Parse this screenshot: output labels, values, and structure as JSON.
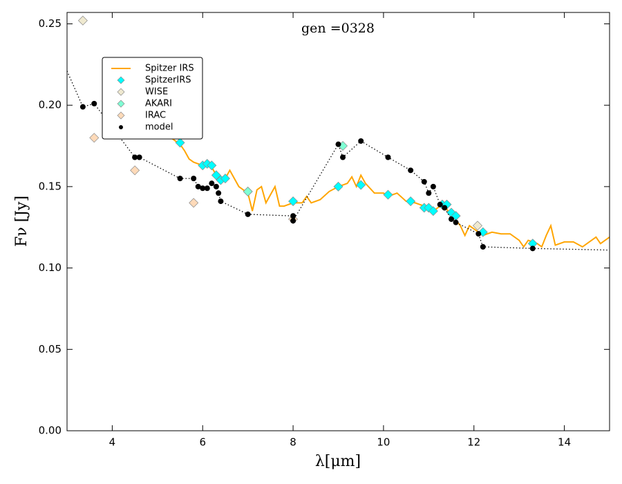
{
  "chart_data": {
    "type": "line_scatter",
    "title": "gen =0328",
    "xlabel": "λ[μm]",
    "ylabel": "Fν [Jy]",
    "xlim": [
      3,
      15
    ],
    "ylim": [
      0,
      0.257
    ],
    "xticks": [
      4,
      6,
      8,
      10,
      12,
      14
    ],
    "yticks": [
      {
        "value": 0,
        "label": "0.00"
      },
      0.05,
      {
        "value": 0.1,
        "label": "0.10"
      },
      0.15,
      {
        "value": 0.2,
        "label": "0.20"
      },
      0.25
    ],
    "legend": "upper left",
    "series": [
      {
        "name": "Spitzer IRS",
        "marker": "line",
        "color": "#ffa500",
        "x": [
          5.3,
          5.5,
          5.6,
          5.7,
          5.8,
          6.0,
          6.2,
          6.3,
          6.5,
          6.6,
          6.8,
          7.0,
          7.1,
          7.2,
          7.3,
          7.4,
          7.6,
          7.7,
          7.8,
          8.0,
          8.2,
          8.3,
          8.4,
          8.6,
          8.8,
          9.0,
          9.2,
          9.3,
          9.4,
          9.5,
          9.6,
          9.8,
          10.0,
          10.1,
          10.3,
          10.5,
          10.7,
          10.9,
          11.1,
          11.3,
          11.5,
          11.7,
          11.8,
          11.9,
          12.0,
          12.2,
          12.4,
          12.6,
          12.8,
          13.0,
          13.1,
          13.2,
          13.4,
          13.5,
          13.6,
          13.7,
          13.8,
          14.0,
          14.2,
          14.4,
          14.5,
          14.7,
          14.8,
          15.0
        ],
        "values": [
          0.18,
          0.176,
          0.172,
          0.167,
          0.165,
          0.163,
          0.162,
          0.157,
          0.155,
          0.16,
          0.15,
          0.146,
          0.135,
          0.148,
          0.15,
          0.14,
          0.15,
          0.138,
          0.138,
          0.14,
          0.14,
          0.144,
          0.14,
          0.142,
          0.147,
          0.15,
          0.152,
          0.156,
          0.15,
          0.157,
          0.152,
          0.146,
          0.146,
          0.144,
          0.146,
          0.141,
          0.14,
          0.138,
          0.135,
          0.139,
          0.133,
          0.126,
          0.12,
          0.126,
          0.124,
          0.12,
          0.122,
          0.121,
          0.121,
          0.117,
          0.113,
          0.117,
          0.115,
          0.113,
          0.12,
          0.126,
          0.114,
          0.116,
          0.116,
          0.113,
          0.115,
          0.119,
          0.115,
          0.119
        ]
      },
      {
        "name": "SpitzerIRS",
        "marker": "diamond",
        "color": "#00ffff",
        "x": [
          5.5,
          6.0,
          6.1,
          6.2,
          6.3,
          6.4,
          6.5,
          7.0,
          8.0,
          9.0,
          9.5,
          10.1,
          10.6,
          10.9,
          11.0,
          11.1,
          11.3,
          11.4,
          11.5,
          11.6,
          12.2,
          13.3
        ],
        "values": [
          0.177,
          0.163,
          0.164,
          0.163,
          0.157,
          0.154,
          0.155,
          0.147,
          0.141,
          0.15,
          0.151,
          0.145,
          0.141,
          0.137,
          0.137,
          0.135,
          0.139,
          0.139,
          0.134,
          0.132,
          0.122,
          0.115
        ]
      },
      {
        "name": "WISE",
        "marker": "diamond",
        "color": "#efe9d0",
        "x": [
          3.35,
          12.08
        ],
        "values": [
          0.252,
          0.126
        ]
      },
      {
        "name": "AKARI",
        "marker": "diamond",
        "color": "#7fffd4",
        "x": [
          7.0,
          9.1
        ],
        "values": [
          0.147,
          0.175
        ]
      },
      {
        "name": "IRAC",
        "marker": "diamond",
        "color": "#ffdab9",
        "x": [
          3.6,
          4.5,
          5.8,
          8.0
        ],
        "values": [
          0.18,
          0.16,
          0.14,
          0.13
        ]
      },
      {
        "name": "model",
        "marker": "dot",
        "color": "#000000",
        "x": [
          3.35,
          3.6,
          4.5,
          4.6,
          5.5,
          5.8,
          5.9,
          6.0,
          6.1,
          6.2,
          6.3,
          6.35,
          6.4,
          7.0,
          8.0,
          8.0,
          9.0,
          9.1,
          9.5,
          10.1,
          10.6,
          10.9,
          11.0,
          11.1,
          11.25,
          11.35,
          11.5,
          11.6,
          12.1,
          12.2,
          13.3
        ],
        "values": [
          0.199,
          0.201,
          0.168,
          0.168,
          0.155,
          0.155,
          0.15,
          0.149,
          0.149,
          0.152,
          0.15,
          0.146,
          0.141,
          0.133,
          0.132,
          0.129,
          0.176,
          0.168,
          0.178,
          0.168,
          0.16,
          0.153,
          0.146,
          0.15,
          0.139,
          0.137,
          0.13,
          0.128,
          0.121,
          0.113,
          0.112
        ],
        "curve": {
          "x": [
            3.0,
            3.35,
            3.6,
            4.5,
            4.6,
            5.5,
            5.8,
            5.9,
            6.0,
            6.1,
            6.2,
            6.3,
            6.35,
            6.4,
            7.0,
            8.0,
            8.0,
            9.0,
            9.1,
            9.5,
            10.1,
            10.6,
            10.9,
            11.0,
            11.1,
            11.25,
            11.35,
            11.5,
            11.6,
            12.1,
            12.2,
            13.3,
            15.0
          ],
          "values": [
            0.221,
            0.199,
            0.201,
            0.168,
            0.168,
            0.155,
            0.155,
            0.15,
            0.149,
            0.149,
            0.152,
            0.15,
            0.146,
            0.141,
            0.133,
            0.132,
            0.129,
            0.176,
            0.168,
            0.178,
            0.168,
            0.16,
            0.153,
            0.146,
            0.15,
            0.139,
            0.137,
            0.13,
            0.128,
            0.121,
            0.113,
            0.112,
            0.111
          ]
        }
      }
    ]
  }
}
